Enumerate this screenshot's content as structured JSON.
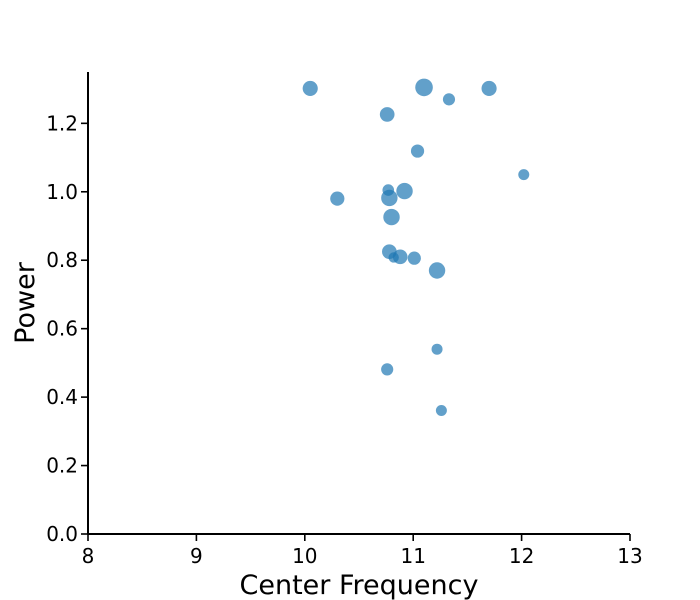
{
  "chart_data": {
    "type": "scatter",
    "title": "",
    "xlabel": "Center Frequency",
    "ylabel": "Power",
    "xlim": [
      8,
      13
    ],
    "ylim": [
      0,
      1.35
    ],
    "xticks": [
      8,
      9,
      10,
      11,
      12,
      13
    ],
    "yticks": [
      0.0,
      0.2,
      0.4,
      0.6,
      0.8,
      1.0,
      1.2
    ],
    "xtick_labels": [
      "8",
      "9",
      "10",
      "11",
      "12",
      "13"
    ],
    "ytick_labels": [
      "0.0",
      "0.2",
      "0.4",
      "0.6",
      "0.8",
      "1.0",
      "1.2"
    ],
    "grid": false,
    "marker_color": "#1f77b4",
    "marker_alpha": 0.7,
    "points": [
      {
        "x": 10.05,
        "y": 1.302,
        "size": 1.7
      },
      {
        "x": 11.1,
        "y": 1.305,
        "size": 2.3
      },
      {
        "x": 11.33,
        "y": 1.27,
        "size": 1.1
      },
      {
        "x": 11.7,
        "y": 1.302,
        "size": 1.7
      },
      {
        "x": 10.76,
        "y": 1.226,
        "size": 1.6
      },
      {
        "x": 11.04,
        "y": 1.119,
        "size": 1.3
      },
      {
        "x": 12.02,
        "y": 1.05,
        "size": 0.9
      },
      {
        "x": 10.77,
        "y": 1.005,
        "size": 1.0
      },
      {
        "x": 10.92,
        "y": 1.002,
        "size": 2.0
      },
      {
        "x": 10.78,
        "y": 0.982,
        "size": 2.0
      },
      {
        "x": 10.3,
        "y": 0.98,
        "size": 1.5
      },
      {
        "x": 10.8,
        "y": 0.926,
        "size": 2.0
      },
      {
        "x": 10.78,
        "y": 0.825,
        "size": 1.6
      },
      {
        "x": 10.82,
        "y": 0.808,
        "size": 0.8
      },
      {
        "x": 10.88,
        "y": 0.81,
        "size": 1.6
      },
      {
        "x": 11.01,
        "y": 0.806,
        "size": 1.3
      },
      {
        "x": 11.22,
        "y": 0.77,
        "size": 2.0
      },
      {
        "x": 11.22,
        "y": 0.54,
        "size": 0.9
      },
      {
        "x": 10.76,
        "y": 0.481,
        "size": 1.1
      },
      {
        "x": 11.26,
        "y": 0.361,
        "size": 0.9
      }
    ]
  }
}
